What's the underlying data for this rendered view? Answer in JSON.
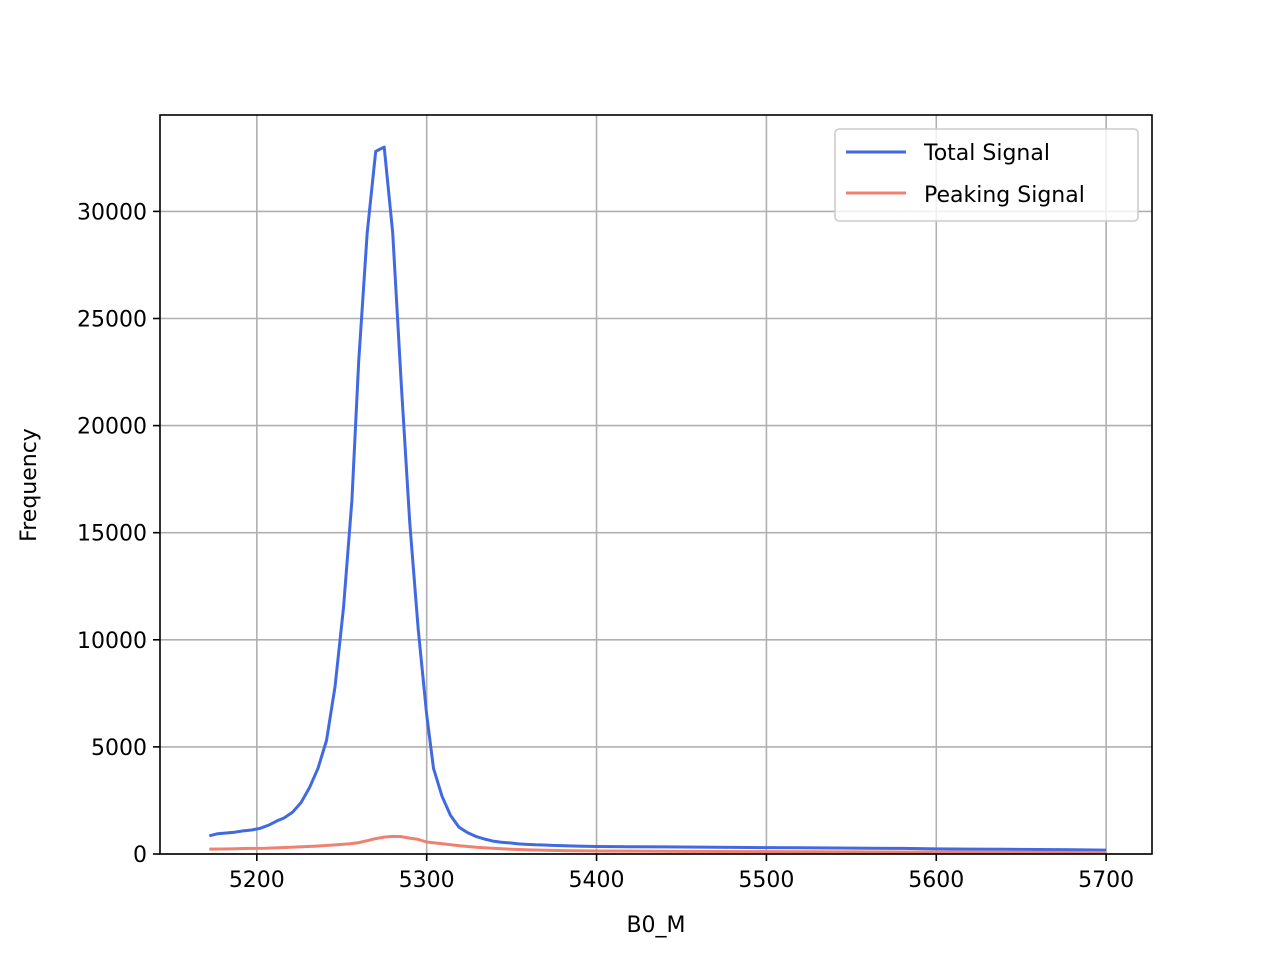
{
  "chart_data": {
    "type": "line",
    "title": "",
    "xlabel": "B0_M",
    "ylabel": "Frequency",
    "xlim": [
      5143,
      5727
    ],
    "ylim": [
      0,
      34500
    ],
    "xticks": [
      5200,
      5300,
      5400,
      5500,
      5600,
      5700
    ],
    "yticks": [
      0,
      5000,
      10000,
      15000,
      20000,
      25000,
      30000
    ],
    "grid": true,
    "legend_position": "top-right",
    "series": [
      {
        "name": "Total Signal",
        "color": "#4169e1",
        "x": [
          5172,
          5177,
          5182,
          5187,
          5192,
          5197,
          5202,
          5207,
          5212,
          5216,
          5221,
          5226,
          5231,
          5236,
          5241,
          5246,
          5251,
          5256,
          5260,
          5265,
          5270,
          5275,
          5280,
          5285,
          5290,
          5295,
          5300,
          5304,
          5309,
          5314,
          5319,
          5324,
          5329,
          5334,
          5339,
          5344,
          5349,
          5354,
          5359,
          5364,
          5369,
          5374,
          5379,
          5384,
          5389,
          5400,
          5420,
          5440,
          5460,
          5480,
          5500,
          5520,
          5540,
          5560,
          5580,
          5600,
          5620,
          5640,
          5660,
          5680,
          5700
        ],
        "values": [
          850,
          950,
          980,
          1020,
          1080,
          1120,
          1200,
          1350,
          1550,
          1680,
          1950,
          2400,
          3100,
          4000,
          5300,
          7800,
          11500,
          16500,
          23000,
          29000,
          32800,
          33000,
          29000,
          22000,
          15500,
          10500,
          6500,
          4000,
          2700,
          1800,
          1250,
          1000,
          820,
          700,
          600,
          550,
          520,
          470,
          450,
          430,
          420,
          400,
          390,
          380,
          370,
          350,
          340,
          330,
          320,
          310,
          300,
          290,
          280,
          270,
          260,
          240,
          230,
          220,
          210,
          200,
          180
        ]
      },
      {
        "name": "Peaking Signal",
        "color": "#f08070",
        "x": [
          5172,
          5185,
          5195,
          5205,
          5215,
          5225,
          5235,
          5245,
          5255,
          5260,
          5265,
          5270,
          5275,
          5280,
          5285,
          5290,
          5295,
          5300,
          5310,
          5320,
          5330,
          5340,
          5350,
          5360,
          5380,
          5400,
          5450,
          5500,
          5550,
          5600,
          5650,
          5700
        ],
        "values": [
          230,
          240,
          260,
          270,
          300,
          330,
          370,
          420,
          480,
          530,
          620,
          720,
          790,
          820,
          810,
          740,
          680,
          560,
          470,
          380,
          310,
          260,
          220,
          190,
          160,
          140,
          120,
          110,
          100,
          90,
          80,
          70
        ]
      }
    ]
  }
}
